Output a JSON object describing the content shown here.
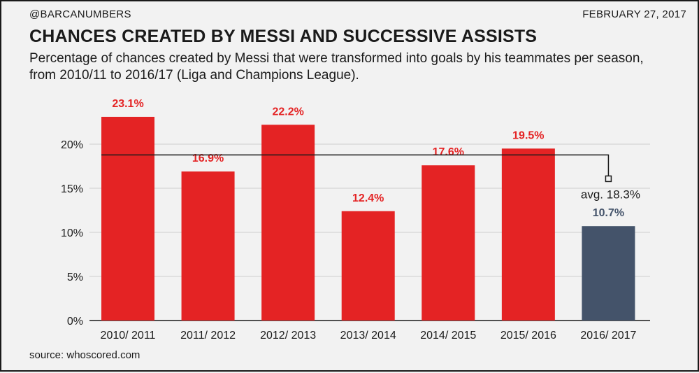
{
  "header": {
    "handle": "@BARCANUMBERS",
    "date": "FEBRUARY 27, 2017",
    "title": "CHANCES CREATED BY MESSI AND SUCCESSIVE ASSISTS",
    "subtitle": "Percentage of chances created by Messi that were transformed into goals by his teammates per season, from 2010/11 to 2016/17 (Liga and Champions League)."
  },
  "footer": {
    "source": "source: whoscored.com"
  },
  "colors": {
    "primary": "#e42324",
    "highlight": "#44536a",
    "text": "#1a1a1a",
    "grid": "#cfcfcf",
    "background": "#f2f2f2"
  },
  "chart_data": {
    "type": "bar",
    "title": "CHANCES CREATED BY MESSI AND SUCCESSIVE ASSISTS",
    "xlabel": "",
    "ylabel": "",
    "categories": [
      "2010/ 2011",
      "2011/ 2012",
      "2012/ 2013",
      "2013/ 2014",
      "2014/ 2015",
      "2015/ 2016",
      "2016/ 2017"
    ],
    "values": [
      23.1,
      16.9,
      22.2,
      12.4,
      17.6,
      19.5,
      10.7
    ],
    "value_labels": [
      "23.1%",
      "16.9%",
      "22.2%",
      "12.4%",
      "17.6%",
      "19.5%",
      "10.7%"
    ],
    "highlight_index": 6,
    "ylim": [
      0,
      25
    ],
    "yticks": [
      0,
      5,
      10,
      15,
      20
    ],
    "ytick_labels": [
      "0%",
      "5%",
      "10%",
      "15%",
      "20%"
    ],
    "grid": true,
    "reference_line": {
      "value": 18.3,
      "label": "avg. 18.3%"
    }
  }
}
